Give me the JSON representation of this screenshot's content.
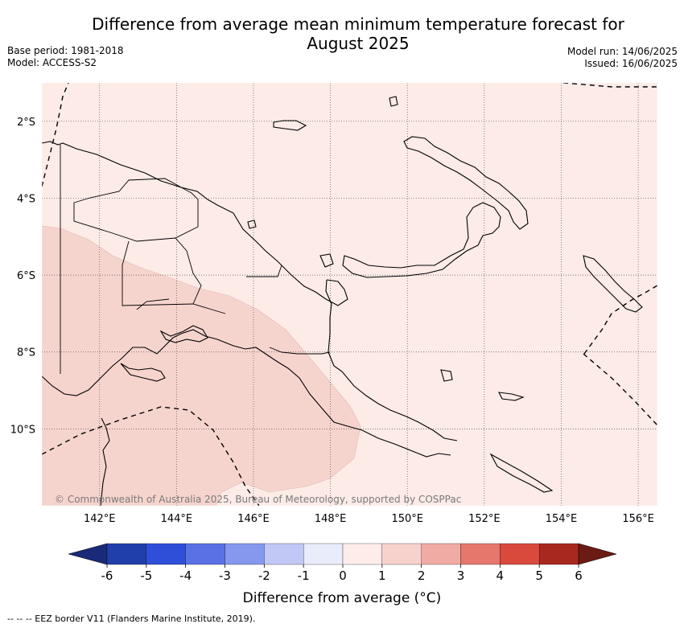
{
  "header": {
    "title_line1": "Difference from average mean minimum temperature forecast for",
    "title_line2": "August 2025",
    "base_period": "Base period: 1981-2018",
    "model": "Model: ACCESS-S2",
    "model_run": "Model run: 14/06/2025",
    "issued": "Issued: 16/06/2025"
  },
  "map": {
    "lon_range": [
      140.5,
      156.5
    ],
    "lat_range": [
      -12.0,
      -1.0
    ],
    "lat_ticks": [
      {
        "value": -2,
        "label": "2°S"
      },
      {
        "value": -4,
        "label": "4°S"
      },
      {
        "value": -6,
        "label": "6°S"
      },
      {
        "value": -8,
        "label": "8°S"
      },
      {
        "value": -10,
        "label": "10°S"
      }
    ],
    "lon_ticks": [
      {
        "value": 142,
        "label": "142°E"
      },
      {
        "value": 144,
        "label": "144°E"
      },
      {
        "value": 146,
        "label": "146°E"
      },
      {
        "value": 148,
        "label": "148°E"
      },
      {
        "value": 150,
        "label": "150°E"
      },
      {
        "value": 152,
        "label": "152°E"
      },
      {
        "value": 154,
        "label": "154°E"
      },
      {
        "value": 156,
        "label": "156°E"
      }
    ],
    "background_category": "0 to 1 °C",
    "highlighted_region_category": "1 to 2 °C",
    "copyright": "© Commonwealth of Australia 2025, Bureau of Meteorology, supported by COSPPac",
    "colors": {
      "zero_to_one": "#fcebe7",
      "one_to_two": "#f6d4ce",
      "coast": "#000000"
    }
  },
  "colorbar": {
    "ticks": [
      "-6",
      "-5",
      "-4",
      "-3",
      "-2",
      "-1",
      "0",
      "1",
      "2",
      "3",
      "4",
      "5",
      "6"
    ],
    "colors": [
      "#213fa8",
      "#2f4fd9",
      "#5a71e6",
      "#8598ee",
      "#c2c8f6",
      "#e9ecfb",
      "#fdecea",
      "#f7d2cd",
      "#f0aca4",
      "#e5776d",
      "#d94a3d",
      "#a8281f"
    ],
    "extend_low_color": "#1a2a78",
    "extend_high_color": "#6b1a14",
    "label": "Difference from average (°C)"
  },
  "footer": {
    "legend_text": "--  --  -- EEZ border V11 (Flanders Marine Institute, 2019)."
  }
}
